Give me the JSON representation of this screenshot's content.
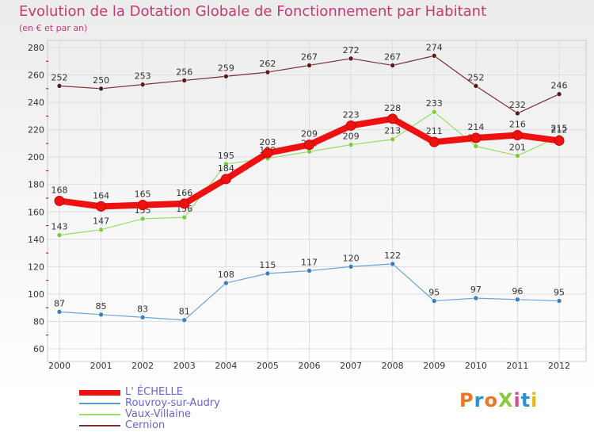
{
  "title": "Evolution de la Dotation Globale de Fonctionnement par Habitant",
  "subtitle": "(en € et par an)",
  "logo": {
    "text": "ProXiti",
    "colors": [
      "#e8762b",
      "#2f8fd3",
      "#e8762b",
      "#8dc63f",
      "#d94b8c",
      "#2f8fd3",
      "#e8b51c"
    ]
  },
  "chart_data": {
    "type": "line",
    "title": "Evolution de la Dotation Globale de Fonctionnement par Habitant",
    "subtitle": "(en € et par an)",
    "x": [
      "2000",
      "2001",
      "2002",
      "2003",
      "2004",
      "2005",
      "2006",
      "2007",
      "2008",
      "2009",
      "2010",
      "2011",
      "2012"
    ],
    "ylim": [
      60,
      280
    ],
    "yticks": [
      60,
      80,
      100,
      120,
      140,
      160,
      180,
      200,
      220,
      240,
      260,
      280
    ],
    "grid": true,
    "legend_position": "bottom-left",
    "series": [
      {
        "name": "L' ÉCHELLE",
        "color": "#ee1111",
        "values": [
          168,
          164,
          165,
          166,
          184,
          203,
          209,
          223,
          228,
          211,
          214,
          216,
          212
        ],
        "labels": [
          "168",
          "164",
          "165",
          "166",
          "184",
          "203",
          "209",
          "223",
          "228",
          "211",
          "214",
          "216",
          "212"
        ]
      },
      {
        "name": "Rouvroy-sur-Audry",
        "color": "#5b9bd0",
        "values": [
          87,
          85,
          83,
          81,
          108,
          115,
          117,
          120,
          122,
          95,
          97,
          96,
          95
        ],
        "labels": [
          "87",
          "85",
          "83",
          "81",
          "108",
          "115",
          "117",
          "120",
          "122",
          "95",
          "97",
          "96",
          "95"
        ]
      },
      {
        "name": "Vaux-Villaine",
        "color": "#99dd66",
        "values": [
          143,
          147,
          155,
          156,
          195,
          199,
          204,
          209,
          213,
          233,
          208,
          201,
          215
        ],
        "labels": [
          "143",
          "147",
          "155",
          "156",
          "195",
          "199",
          "204",
          "209",
          "213",
          "233",
          "208",
          "201",
          "215"
        ]
      },
      {
        "name": "Cernion",
        "color": "#7a3030",
        "values": [
          252,
          250,
          253,
          256,
          259,
          262,
          267,
          272,
          267,
          274,
          252,
          232,
          246
        ],
        "labels": [
          "252",
          "250",
          "253",
          "256",
          "259",
          "262",
          "267",
          "272",
          "267",
          "274",
          "252",
          "232",
          "246"
        ]
      }
    ]
  }
}
